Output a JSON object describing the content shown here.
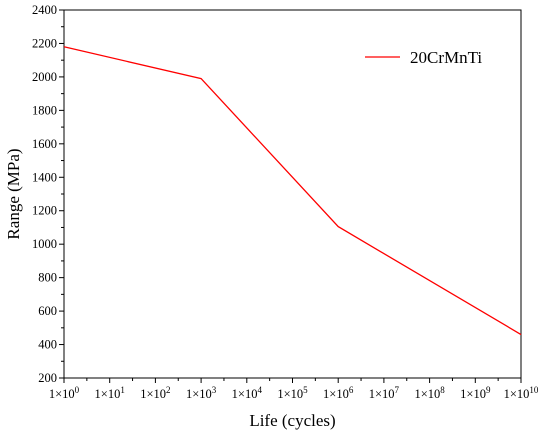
{
  "chart_data": {
    "type": "line",
    "xlabel": "Life (cycles)",
    "ylabel": "Range (MPa)",
    "x_scale": "log",
    "xlim": [
      1,
      10000000000
    ],
    "ylim": [
      200,
      2400
    ],
    "y_ticks": [
      200,
      400,
      600,
      800,
      1000,
      1200,
      1400,
      1600,
      1800,
      2000,
      2200,
      2400
    ],
    "x_ticks": [
      {
        "value": 1,
        "mantissa": "1×10",
        "exp": "0"
      },
      {
        "value": 10,
        "mantissa": "1×10",
        "exp": "1"
      },
      {
        "value": 100,
        "mantissa": "1×10",
        "exp": "2"
      },
      {
        "value": 1000,
        "mantissa": "1×10",
        "exp": "3"
      },
      {
        "value": 10000,
        "mantissa": "1×10",
        "exp": "4"
      },
      {
        "value": 100000,
        "mantissa": "1×10",
        "exp": "5"
      },
      {
        "value": 1000000,
        "mantissa": "1×10",
        "exp": "6"
      },
      {
        "value": 10000000,
        "mantissa": "1×10",
        "exp": "7"
      },
      {
        "value": 100000000,
        "mantissa": "1×10",
        "exp": "8"
      },
      {
        "value": 1000000000,
        "mantissa": "1×10",
        "exp": "9"
      },
      {
        "value": 10000000000,
        "mantissa": "1×10",
        "exp": "10"
      }
    ],
    "grid": false,
    "legend_position": "top-right",
    "series": [
      {
        "name": "20CrMnTi",
        "color": "#ff0000",
        "x": [
          1,
          1000,
          1000000,
          10000000000
        ],
        "y": [
          2180,
          1990,
          1105,
          460
        ]
      }
    ]
  }
}
